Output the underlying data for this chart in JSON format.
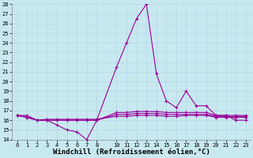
{
  "xlabel": "Windchill (Refroidissement éolien,°C)",
  "hours": [
    0,
    1,
    2,
    3,
    4,
    5,
    6,
    7,
    8,
    10,
    11,
    12,
    13,
    14,
    15,
    16,
    17,
    18,
    19,
    20,
    21,
    22,
    23
  ],
  "series": [
    [
      16.5,
      16.5,
      16.0,
      16.0,
      15.5,
      15.0,
      14.8,
      14.0,
      16.0,
      21.5,
      24.0,
      26.5,
      28.0,
      20.8,
      18.0,
      17.3,
      19.0,
      17.5,
      17.5,
      16.5,
      16.5,
      16.0,
      16.0
    ],
    [
      16.5,
      16.3,
      16.0,
      16.1,
      16.1,
      16.1,
      16.1,
      16.1,
      16.1,
      16.4,
      16.4,
      16.5,
      16.5,
      16.5,
      16.4,
      16.4,
      16.5,
      16.5,
      16.5,
      16.3,
      16.3,
      16.3,
      16.3
    ],
    [
      16.5,
      16.3,
      16.0,
      16.0,
      16.0,
      16.0,
      16.0,
      16.0,
      16.0,
      16.6,
      16.6,
      16.7,
      16.7,
      16.7,
      16.6,
      16.6,
      16.6,
      16.6,
      16.6,
      16.4,
      16.4,
      16.4,
      16.4
    ],
    [
      16.5,
      16.3,
      16.0,
      16.0,
      16.0,
      16.0,
      16.0,
      16.0,
      16.0,
      16.8,
      16.8,
      16.9,
      16.9,
      16.9,
      16.8,
      16.8,
      16.8,
      16.8,
      16.8,
      16.5,
      16.5,
      16.5,
      16.5
    ]
  ],
  "line_color": "#990099",
  "marker": "+",
  "bg_color": "#c8e8f0",
  "grid_color": "#b0d8e8",
  "ylim": [
    14,
    28
  ],
  "xlim": [
    -0.5,
    23.5
  ],
  "yticks": [
    14,
    15,
    16,
    17,
    18,
    19,
    20,
    21,
    22,
    23,
    24,
    25,
    26,
    27,
    28
  ],
  "xticks": [
    0,
    1,
    2,
    3,
    4,
    5,
    6,
    7,
    8,
    10,
    11,
    12,
    13,
    14,
    15,
    16,
    17,
    18,
    19,
    20,
    21,
    22,
    23
  ],
  "tick_fontsize": 5.0,
  "xlabel_fontsize": 6.5,
  "line_width": 0.8,
  "marker_size": 3.0
}
